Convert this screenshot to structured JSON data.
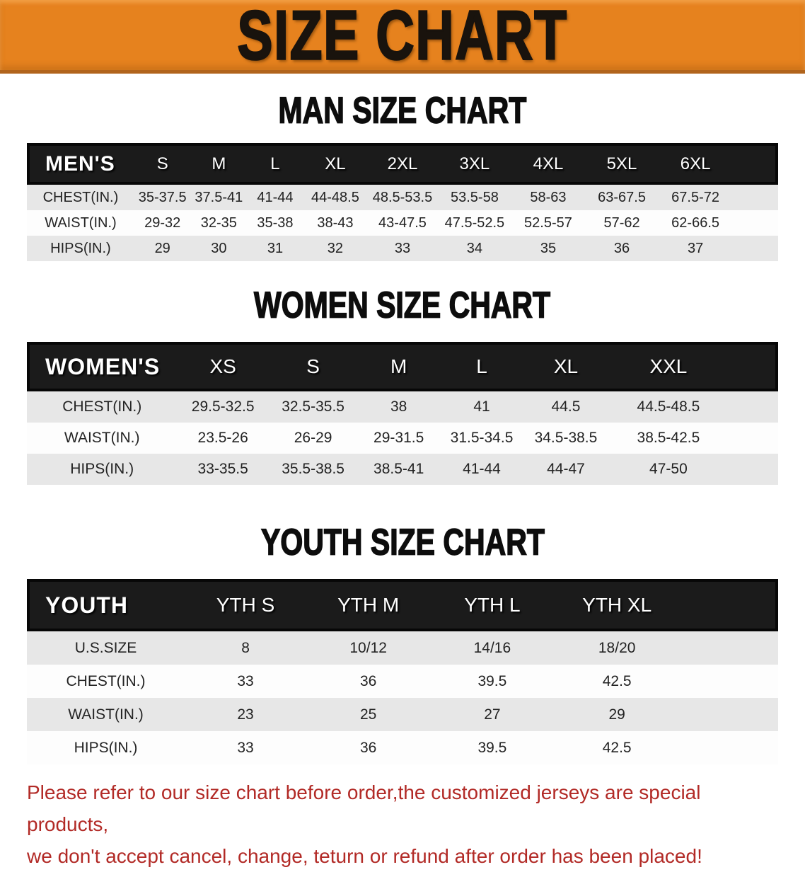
{
  "banner": {
    "title": "SIZE CHART",
    "bg_color": "#e6821e"
  },
  "sections": [
    {
      "heading": "MAN SIZE CHART",
      "header_label": "MEN'S",
      "columns": [
        "S",
        "M",
        "L",
        "XL",
        "2XL",
        "3XL",
        "4XL",
        "5XL",
        "6XL"
      ],
      "rows": [
        {
          "label": "CHEST(IN.)",
          "values": [
            "35-37.5",
            "37.5-41",
            "41-44",
            "44-48.5",
            "48.5-53.5",
            "53.5-58",
            "58-63",
            "63-67.5",
            "67.5-72"
          ]
        },
        {
          "label": "WAIST(IN.)",
          "values": [
            "29-32",
            "32-35",
            "35-38",
            "38-43",
            "43-47.5",
            "47.5-52.5",
            "52.5-57",
            "57-62",
            "62-66.5"
          ]
        },
        {
          "label": "HIPS(IN.)",
          "values": [
            "29",
            "30",
            "31",
            "32",
            "33",
            "34",
            "35",
            "36",
            "37"
          ]
        }
      ]
    },
    {
      "heading": "WOMEN SIZE CHART",
      "header_label": "WOMEN'S",
      "columns": [
        "XS",
        "S",
        "M",
        "L",
        "XL",
        "XXL"
      ],
      "rows": [
        {
          "label": "CHEST(IN.)",
          "values": [
            "29.5-32.5",
            "32.5-35.5",
            "38",
            "41",
            "44.5",
            "44.5-48.5"
          ]
        },
        {
          "label": "WAIST(IN.)",
          "values": [
            "23.5-26",
            "26-29",
            "29-31.5",
            "31.5-34.5",
            "34.5-38.5",
            "38.5-42.5"
          ]
        },
        {
          "label": "HIPS(IN.)",
          "values": [
            "33-35.5",
            "35.5-38.5",
            "38.5-41",
            "41-44",
            "44-47",
            "47-50"
          ]
        }
      ]
    },
    {
      "heading": "YOUTH SIZE CHART",
      "header_label": "YOUTH",
      "columns": [
        "YTH S",
        "YTH M",
        "YTH L",
        "YTH XL"
      ],
      "rows": [
        {
          "label": "U.S.SIZE",
          "values": [
            "8",
            "10/12",
            "14/16",
            "18/20"
          ]
        },
        {
          "label": "CHEST(IN.)",
          "values": [
            "33",
            "36",
            "39.5",
            "42.5"
          ]
        },
        {
          "label": "WAIST(IN.)",
          "values": [
            "23",
            "25",
            "27",
            "29"
          ]
        },
        {
          "label": "HIPS(IN.)",
          "values": [
            "33",
            "36",
            "39.5",
            "42.5"
          ]
        }
      ]
    }
  ],
  "footer": {
    "line1": "Please refer to our size chart before order,the customized jerseys are special products,",
    "line2": "we don't accept cancel, change, teturn or refund after order has been placed!",
    "text_color": "#b22a26"
  }
}
